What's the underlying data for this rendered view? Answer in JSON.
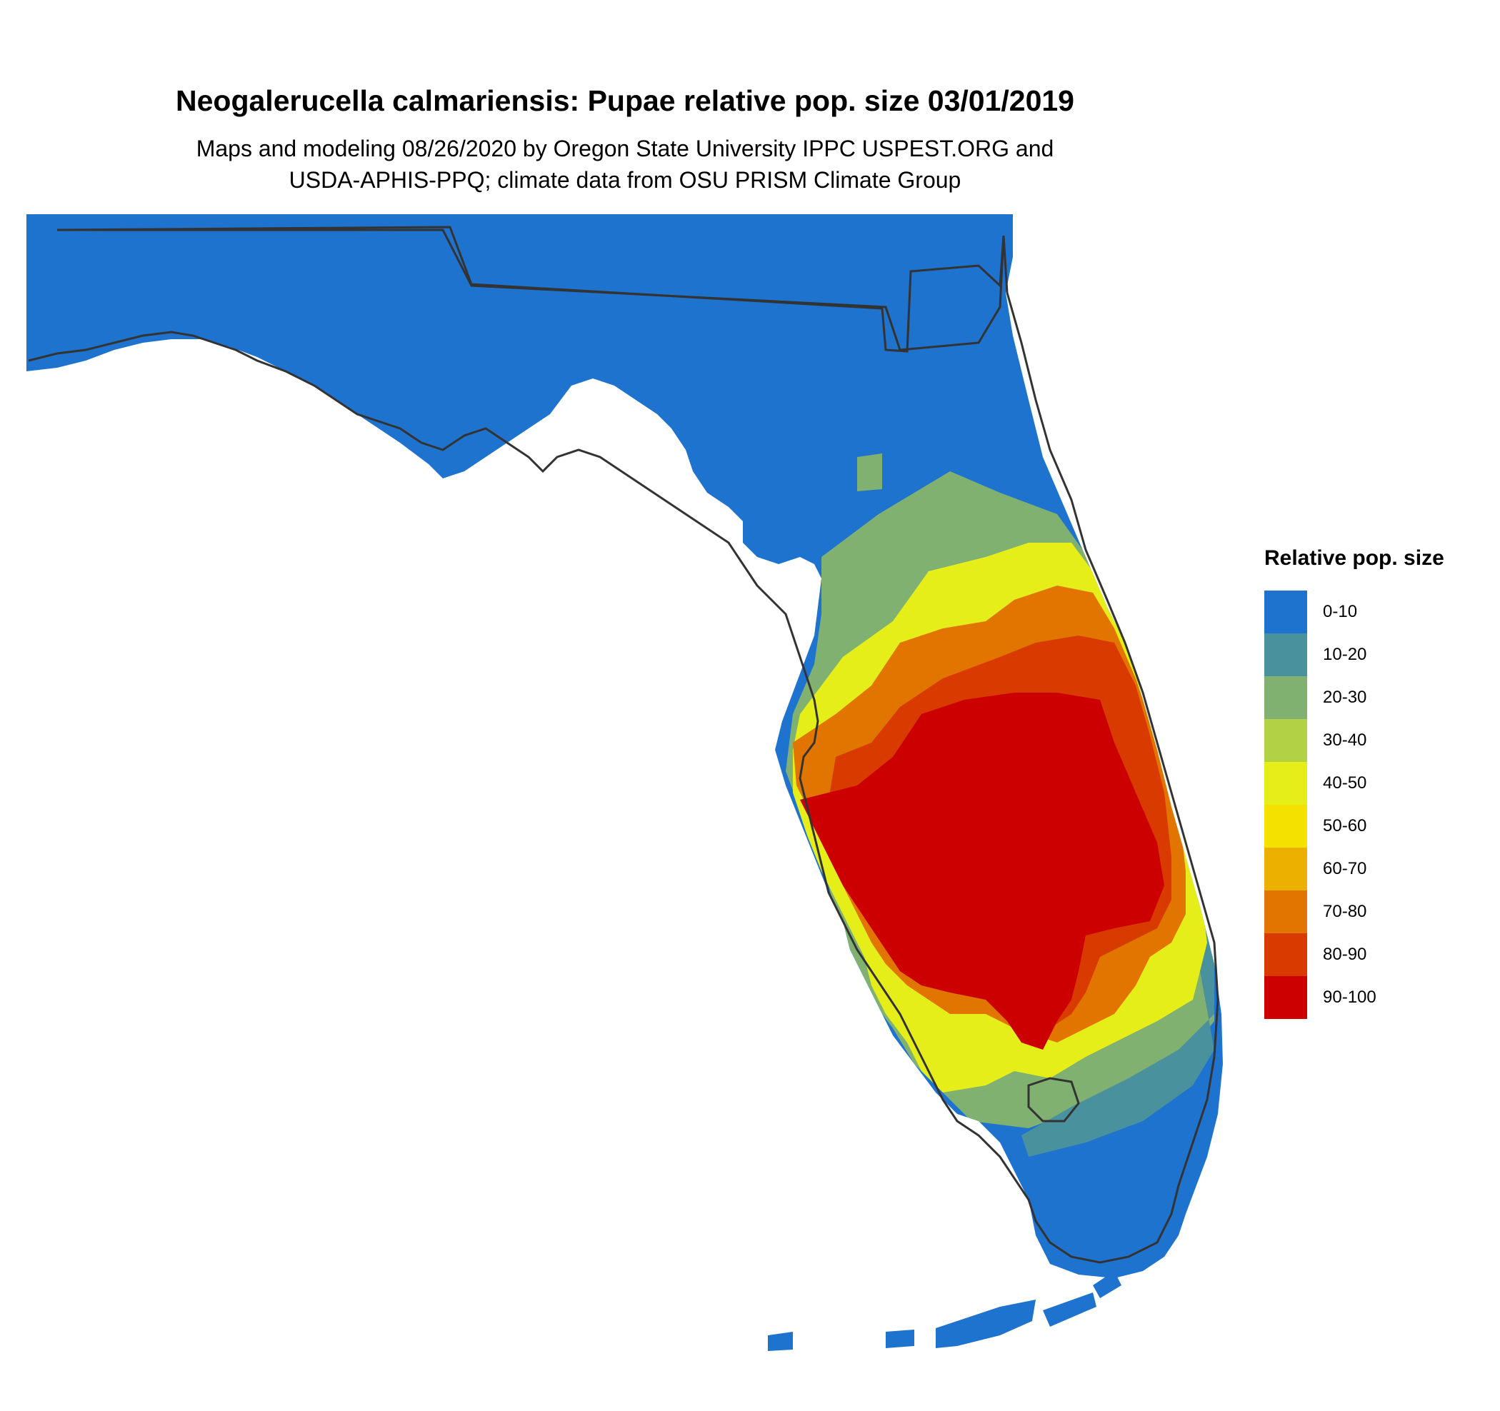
{
  "title": "Neogalerucella calmariensis: Pupae relative pop. size 03/01/2019",
  "subtitle": [
    "Maps and modeling 08/26/2020 by Oregon State University IPPC USPEST.ORG and",
    "USDA-APHIS-PPQ; climate data from OSU PRISM Climate Group"
  ],
  "legend": {
    "title": "Relative pop. size",
    "items": [
      {
        "label": "0-10",
        "color": "#1e73cf"
      },
      {
        "label": "10-20",
        "color": "#4a919e"
      },
      {
        "label": "20-30",
        "color": "#80b171"
      },
      {
        "label": "30-40",
        "color": "#b2d145"
      },
      {
        "label": "40-50",
        "color": "#e6ee1a"
      },
      {
        "label": "50-60",
        "color": "#f5e100"
      },
      {
        "label": "60-70",
        "color": "#ebb000"
      },
      {
        "label": "70-80",
        "color": "#e17500"
      },
      {
        "label": "80-90",
        "color": "#d93a00"
      },
      {
        "label": "90-100",
        "color": "#cc0000"
      }
    ]
  }
}
